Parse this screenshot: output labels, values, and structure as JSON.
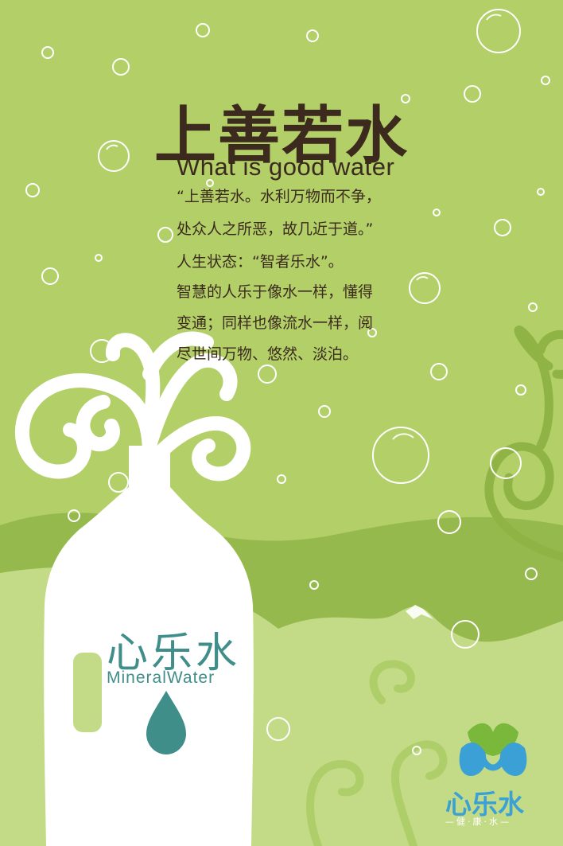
{
  "poster": {
    "title": "上善若水",
    "subtitle": "What is good water",
    "lines": [
      "“上善若水。水利万物而不争，",
      "处众人之所恶，故几近于道。”",
      "人生状态：“智者乐水”。",
      "智慧的人乐于像水一样，懂得",
      "变通；同样也像流水一样，阅",
      "尽世间万物、悠然、淡泊。"
    ]
  },
  "bottle": {
    "brand_cn": "心乐水",
    "brand_en": "MineralWater",
    "drop_icon": "water-drop-icon"
  },
  "logo": {
    "name": "心乐水",
    "tagline": "—健·康·水—",
    "icon": "leaf-drop-logo-icon"
  },
  "colors": {
    "background": "#b2cf68",
    "hills_dark": "#93b84a",
    "hills_light": "#c2da84",
    "text": "#3b2a1d",
    "brand_teal": "#3f8e8a",
    "logo_blue": "#3aa0d6",
    "logo_green": "#79b83a"
  }
}
